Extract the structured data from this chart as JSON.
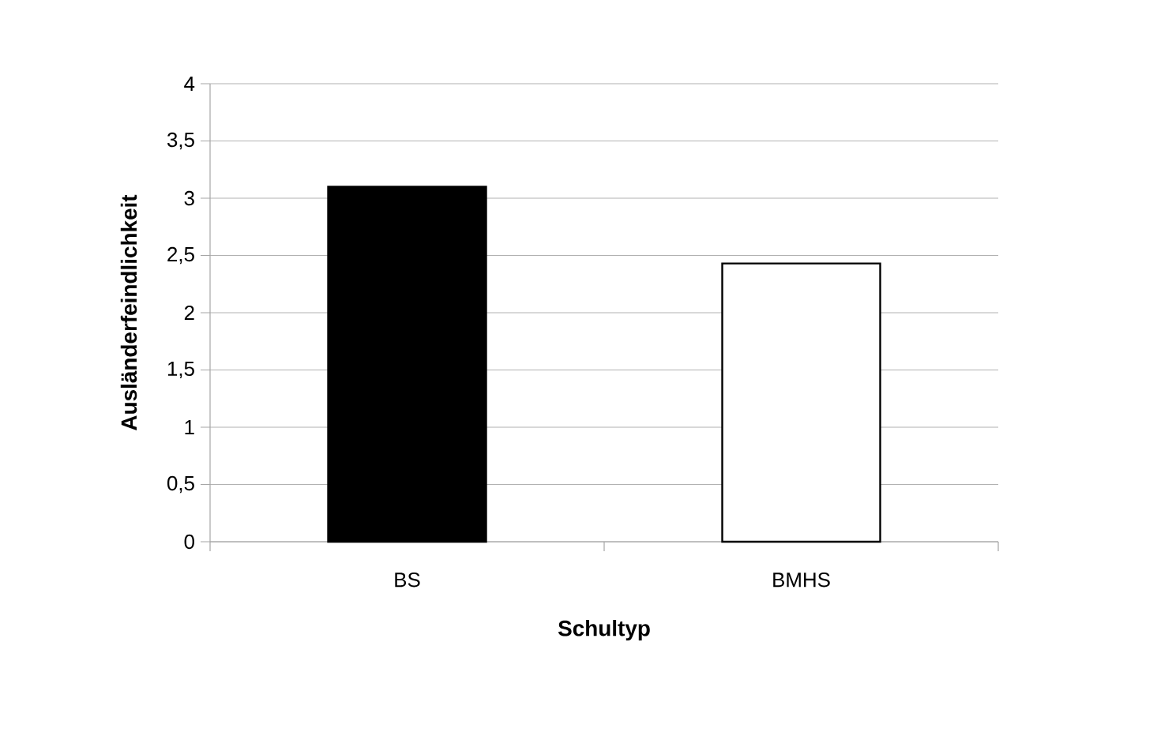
{
  "chart_data": {
    "type": "bar",
    "xlabel": "Schultyp",
    "ylabel": "Ausländerfeindlichkeit",
    "categories": [
      "BS",
      "BMHS"
    ],
    "values": [
      3.1,
      2.43
    ],
    "colors": [
      "#000000",
      "#ffffff"
    ],
    "ylim": [
      0,
      4
    ],
    "yticks": [
      0,
      {
        "value": 0.5,
        "label": "0,5"
      },
      1,
      {
        "value": 1.5,
        "label": "1,5"
      },
      2,
      {
        "value": 2.5,
        "label": "2,5"
      },
      3,
      {
        "value": 3.5,
        "label": "3,5"
      },
      4
    ],
    "grid": "y"
  }
}
